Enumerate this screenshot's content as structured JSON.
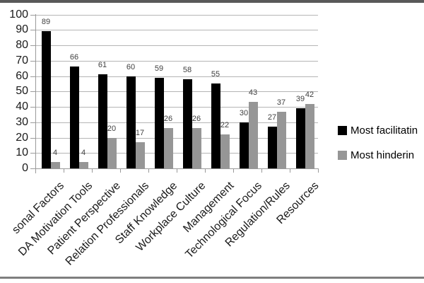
{
  "chart_data": {
    "type": "bar",
    "title": "",
    "xlabel": "",
    "ylabel": "",
    "categories": [
      "sonal Factors",
      "DA Motivation Tools",
      "Patient Perspective",
      "Relation Professionals",
      "Staff Knowledge",
      "Workplace Culture",
      "Management",
      "Technological Focus",
      "Regulation/Rules",
      "Resources"
    ],
    "series": [
      {
        "name": "Most facilitatin",
        "color": "#000000",
        "values": [
          89,
          66,
          61,
          60,
          59,
          58,
          55,
          30,
          27,
          39
        ]
      },
      {
        "name": "Most hinderin",
        "color": "#969696",
        "values": [
          4,
          4,
          20,
          17,
          26,
          26,
          22,
          43,
          37,
          42
        ]
      }
    ],
    "ylim": [
      0,
      100
    ],
    "y_ticks": [
      0,
      10,
      20,
      30,
      40,
      50,
      60,
      70,
      80,
      90,
      100
    ],
    "grid": "horizontal",
    "legend_position": "right",
    "data_labels": true,
    "category_label_rotation": -45
  },
  "colors": {
    "background": "#ffffff",
    "gridline": "#b5b5b5",
    "axis": "#9a9a9a",
    "tick_label": "#1a1a1a",
    "data_label": "#404040",
    "frame_border_top": "#595959",
    "frame_border_bottom": "#7f7f7f"
  }
}
